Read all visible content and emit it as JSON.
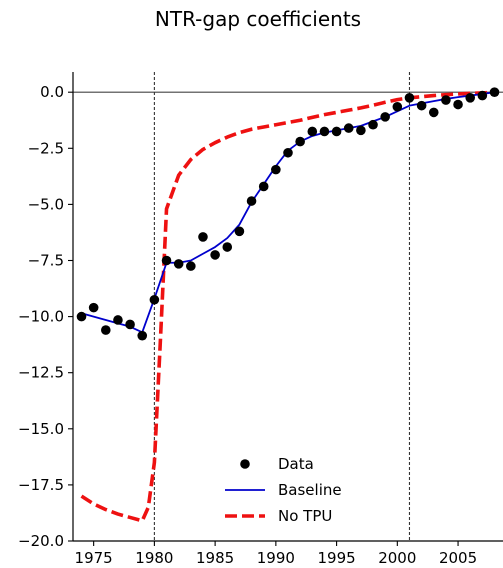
{
  "chart_data": {
    "type": "line",
    "title": "NTR-gap coefficients",
    "xlabel": "",
    "ylabel": "",
    "xlim": [
      1973.3,
      2008.7
    ],
    "ylim": [
      -20.0,
      0.9
    ],
    "xticks": [
      1975,
      1980,
      1985,
      1990,
      1995,
      2000,
      2005
    ],
    "xtick_labels": [
      "1975",
      "1980",
      "1985",
      "1990",
      "1995",
      "2000",
      "2005"
    ],
    "yticks": [
      0.0,
      -2.5,
      -5.0,
      -7.5,
      -10.0,
      -12.5,
      -15.0,
      -17.5,
      -20.0
    ],
    "ytick_labels": [
      "0.0",
      "−2.5",
      "−5.0",
      "−7.5",
      "−10.0",
      "−12.5",
      "−15.0",
      "−17.5",
      "−20.0"
    ],
    "vlines": [
      1980,
      2001
    ],
    "hline": 0,
    "legend_position": "lower-center",
    "series": [
      {
        "name": "Data",
        "style": "scatter",
        "color": "#000000",
        "x": [
          1974,
          1975,
          1976,
          1977,
          1978,
          1979,
          1980,
          1981,
          1982,
          1983,
          1984,
          1985,
          1986,
          1987,
          1988,
          1989,
          1990,
          1991,
          1992,
          1993,
          1994,
          1995,
          1996,
          1997,
          1998,
          1999,
          2000,
          2001,
          2002,
          2003,
          2004,
          2005,
          2006,
          2007,
          2008
        ],
        "y": [
          -10.0,
          -9.6,
          -10.6,
          -10.15,
          -10.35,
          -10.85,
          -9.25,
          -7.5,
          -7.65,
          -7.75,
          -6.45,
          -7.25,
          -6.9,
          -6.2,
          -4.85,
          -4.2,
          -3.45,
          -2.7,
          -2.2,
          -1.75,
          -1.75,
          -1.75,
          -1.6,
          -1.7,
          -1.45,
          -1.1,
          -0.65,
          -0.25,
          -0.6,
          -0.9,
          -0.35,
          -0.55,
          -0.25,
          -0.15,
          0.0
        ]
      },
      {
        "name": "Baseline",
        "style": "solid",
        "color": "#0000cc",
        "x": [
          1974,
          1975,
          1976,
          1977,
          1978,
          1979,
          1980,
          1981,
          1982,
          1983,
          1984,
          1985,
          1986,
          1987,
          1988,
          1989,
          1990,
          1991,
          1992,
          1993,
          1994,
          1995,
          1996,
          1997,
          1998,
          1999,
          2000,
          2001,
          2002,
          2003,
          2004,
          2005,
          2006,
          2007,
          2008
        ],
        "y": [
          -9.85,
          -10.0,
          -10.15,
          -10.3,
          -10.45,
          -10.7,
          -9.2,
          -7.6,
          -7.6,
          -7.5,
          -7.2,
          -6.9,
          -6.5,
          -5.9,
          -4.9,
          -4.1,
          -3.3,
          -2.6,
          -2.2,
          -1.95,
          -1.8,
          -1.7,
          -1.6,
          -1.5,
          -1.3,
          -1.1,
          -0.85,
          -0.6,
          -0.5,
          -0.4,
          -0.3,
          -0.22,
          -0.15,
          -0.08,
          0.0
        ]
      },
      {
        "name": "No TPU",
        "style": "dashed",
        "color": "#ee1111",
        "x": [
          1974,
          1975,
          1976,
          1977,
          1978,
          1979,
          1979.5,
          1980,
          1980.5,
          1981,
          1982,
          1983,
          1984,
          1985,
          1986,
          1987,
          1988,
          1989,
          1990,
          1991,
          1992,
          1993,
          1994,
          1995,
          1996,
          1997,
          1998,
          1999,
          2000,
          2001,
          2002,
          2003,
          2004,
          2005,
          2006,
          2007,
          2008
        ],
        "y": [
          -18.0,
          -18.35,
          -18.6,
          -18.8,
          -18.95,
          -19.1,
          -18.5,
          -16.5,
          -11.0,
          -5.2,
          -3.7,
          -3.0,
          -2.55,
          -2.25,
          -2.0,
          -1.8,
          -1.65,
          -1.55,
          -1.45,
          -1.35,
          -1.25,
          -1.12,
          -1.0,
          -0.9,
          -0.8,
          -0.7,
          -0.58,
          -0.45,
          -0.33,
          -0.25,
          -0.2,
          -0.15,
          -0.11,
          -0.08,
          -0.05,
          -0.03,
          0.0
        ]
      }
    ]
  }
}
